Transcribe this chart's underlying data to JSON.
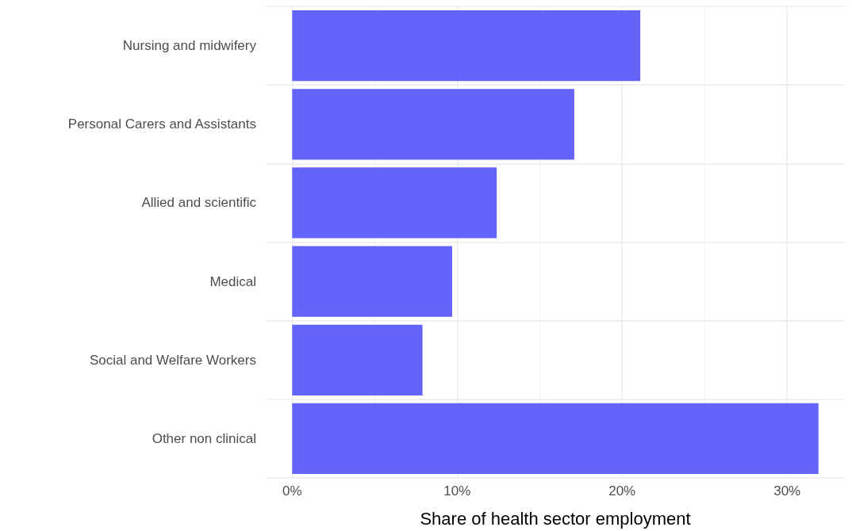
{
  "chart_data": {
    "type": "bar",
    "orientation": "horizontal",
    "xlabel": "Share of health sector employment",
    "categories": [
      "Nursing and midwifery",
      "Personal Carers and Assistants",
      "Allied and scientific",
      "Medical",
      "Social and Welfare Workers",
      "Other non clinical"
    ],
    "values": [
      21.1,
      17.1,
      12.4,
      9.7,
      7.9,
      31.9
    ],
    "color": "#6464fd",
    "xlim": [
      -1.6,
      33.5
    ],
    "xticks": [
      {
        "value": 0,
        "label": "0%"
      },
      {
        "value": 10,
        "label": "10%"
      },
      {
        "value": 20,
        "label": "20%"
      },
      {
        "value": 30,
        "label": "30%"
      }
    ],
    "grid": true
  }
}
